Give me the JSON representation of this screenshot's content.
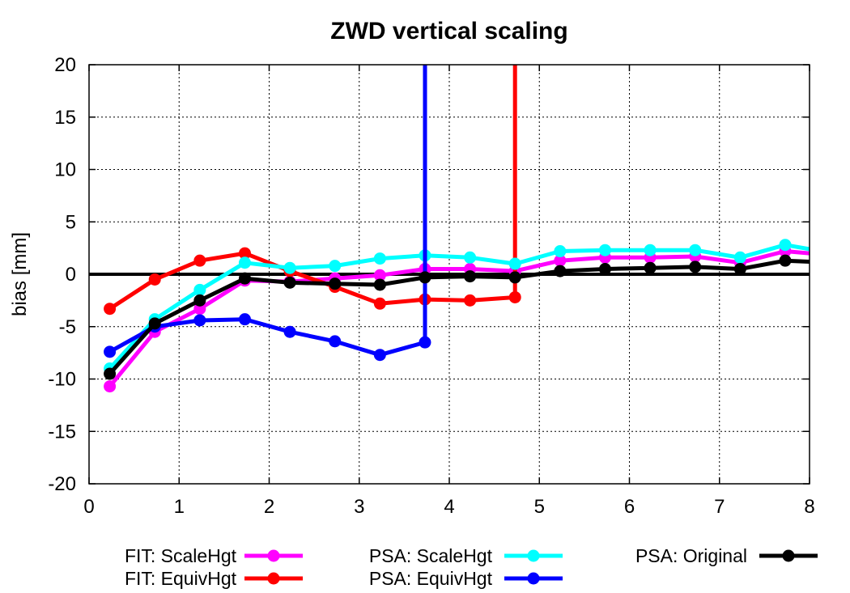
{
  "chart_data": {
    "type": "line",
    "title": "ZWD vertical scaling",
    "xlabel": "",
    "ylabel": "bias [mm]",
    "xlim": [
      0,
      8
    ],
    "ylim": [
      -20,
      20
    ],
    "xticks": [
      0,
      1,
      2,
      3,
      4,
      5,
      6,
      7,
      8
    ],
    "yticks": [
      -20,
      -15,
      -10,
      -5,
      0,
      5,
      10,
      15,
      20
    ],
    "grid": true,
    "zero_line": true,
    "legend_position": "bottom",
    "series": [
      {
        "name": "FIT: ScaleHgt",
        "color": "#ff00ff",
        "x": [
          0.23,
          0.73,
          1.23,
          1.73,
          2.23,
          2.73,
          3.23,
          3.73,
          4.23,
          4.73,
          5.23,
          5.73,
          6.23,
          6.73,
          7.23,
          7.73,
          8.0
        ],
        "y": [
          -10.7,
          -5.5,
          -3.3,
          -0.6,
          -0.7,
          -0.4,
          -0.1,
          0.5,
          0.5,
          0.3,
          1.3,
          1.6,
          1.6,
          1.7,
          1.1,
          2.2,
          2.0
        ]
      },
      {
        "name": "FIT: EquivHgt",
        "color": "#ff0000",
        "x": [
          0.23,
          0.73,
          1.23,
          1.73,
          2.23,
          2.73,
          3.23,
          3.73,
          4.23,
          4.73,
          4.73
        ],
        "y": [
          -3.3,
          -0.5,
          1.3,
          2.0,
          0.3,
          -1.2,
          -2.8,
          -2.4,
          -2.5,
          -2.2,
          20
        ]
      },
      {
        "name": "PSA: ScaleHgt",
        "color": "#00ffff",
        "x": [
          0.23,
          0.73,
          1.23,
          1.73,
          2.23,
          2.73,
          3.23,
          3.73,
          4.23,
          4.73,
          5.23,
          5.73,
          6.23,
          6.73,
          7.23,
          7.73,
          8.0
        ],
        "y": [
          -9.0,
          -4.3,
          -1.5,
          1.1,
          0.6,
          0.8,
          1.5,
          1.8,
          1.6,
          1.0,
          2.2,
          2.3,
          2.3,
          2.3,
          1.6,
          2.8,
          2.4
        ]
      },
      {
        "name": "PSA: EquivHgt",
        "color": "#0000ff",
        "x": [
          0.23,
          0.73,
          1.23,
          1.73,
          2.23,
          2.73,
          3.23,
          3.73,
          3.73
        ],
        "y": [
          -7.4,
          -5.0,
          -4.4,
          -4.3,
          -5.5,
          -6.4,
          -7.7,
          -6.5,
          20
        ]
      },
      {
        "name": "PSA: Original",
        "color": "#000000",
        "x": [
          0.23,
          0.73,
          1.23,
          1.73,
          2.23,
          2.73,
          3.23,
          3.73,
          4.23,
          4.73,
          5.23,
          5.73,
          6.23,
          6.73,
          7.23,
          7.73,
          8.0
        ],
        "y": [
          -9.5,
          -4.7,
          -2.5,
          -0.4,
          -0.8,
          -0.9,
          -1.0,
          -0.3,
          -0.2,
          -0.3,
          0.3,
          0.5,
          0.6,
          0.7,
          0.5,
          1.3,
          1.2
        ]
      }
    ]
  }
}
